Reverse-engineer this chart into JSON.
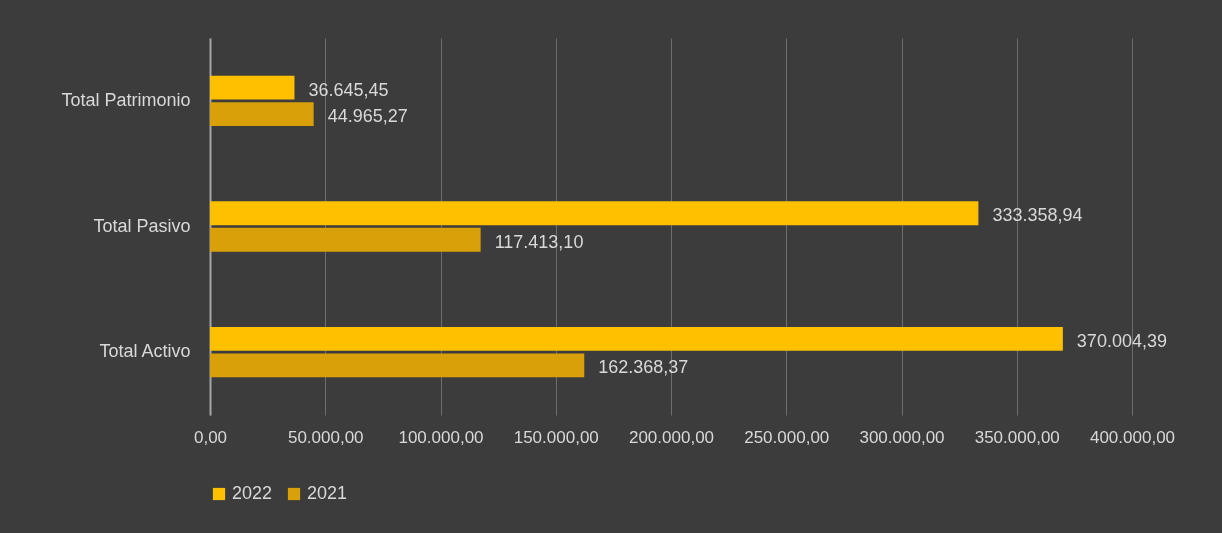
{
  "chart_data": {
    "type": "bar",
    "orientation": "horizontal",
    "categories": [
      "Total Patrimonio",
      "Total Pasivo",
      "Total Activo"
    ],
    "series": [
      {
        "name": "2022",
        "color": "#ffc000",
        "values": [
          36645.45,
          333358.94,
          370004.39
        ],
        "value_labels": [
          "36.645,45",
          "333.358,94",
          "370.004,39"
        ]
      },
      {
        "name": "2021",
        "color": "#d9a00a",
        "values": [
          44965.27,
          117413.1,
          162368.37
        ],
        "value_labels": [
          "44.965,27",
          "117.413,10",
          "162.368,37"
        ]
      }
    ],
    "xlim": [
      0,
      400000
    ],
    "xticks": [
      {
        "value": 0,
        "label": "0,00"
      },
      {
        "value": 50000,
        "label": "50.000,00"
      },
      {
        "value": 100000,
        "label": "100.000,00"
      },
      {
        "value": 150000,
        "label": "150.000,00"
      },
      {
        "value": 200000,
        "label": "200.000,00"
      },
      {
        "value": 250000,
        "label": "250.000,00"
      },
      {
        "value": 300000,
        "label": "300.000,00"
      },
      {
        "value": 350000,
        "label": "350.000,00"
      },
      {
        "value": 400000,
        "label": "400.000,00"
      }
    ],
    "grid": "x",
    "legend": "bottom"
  }
}
